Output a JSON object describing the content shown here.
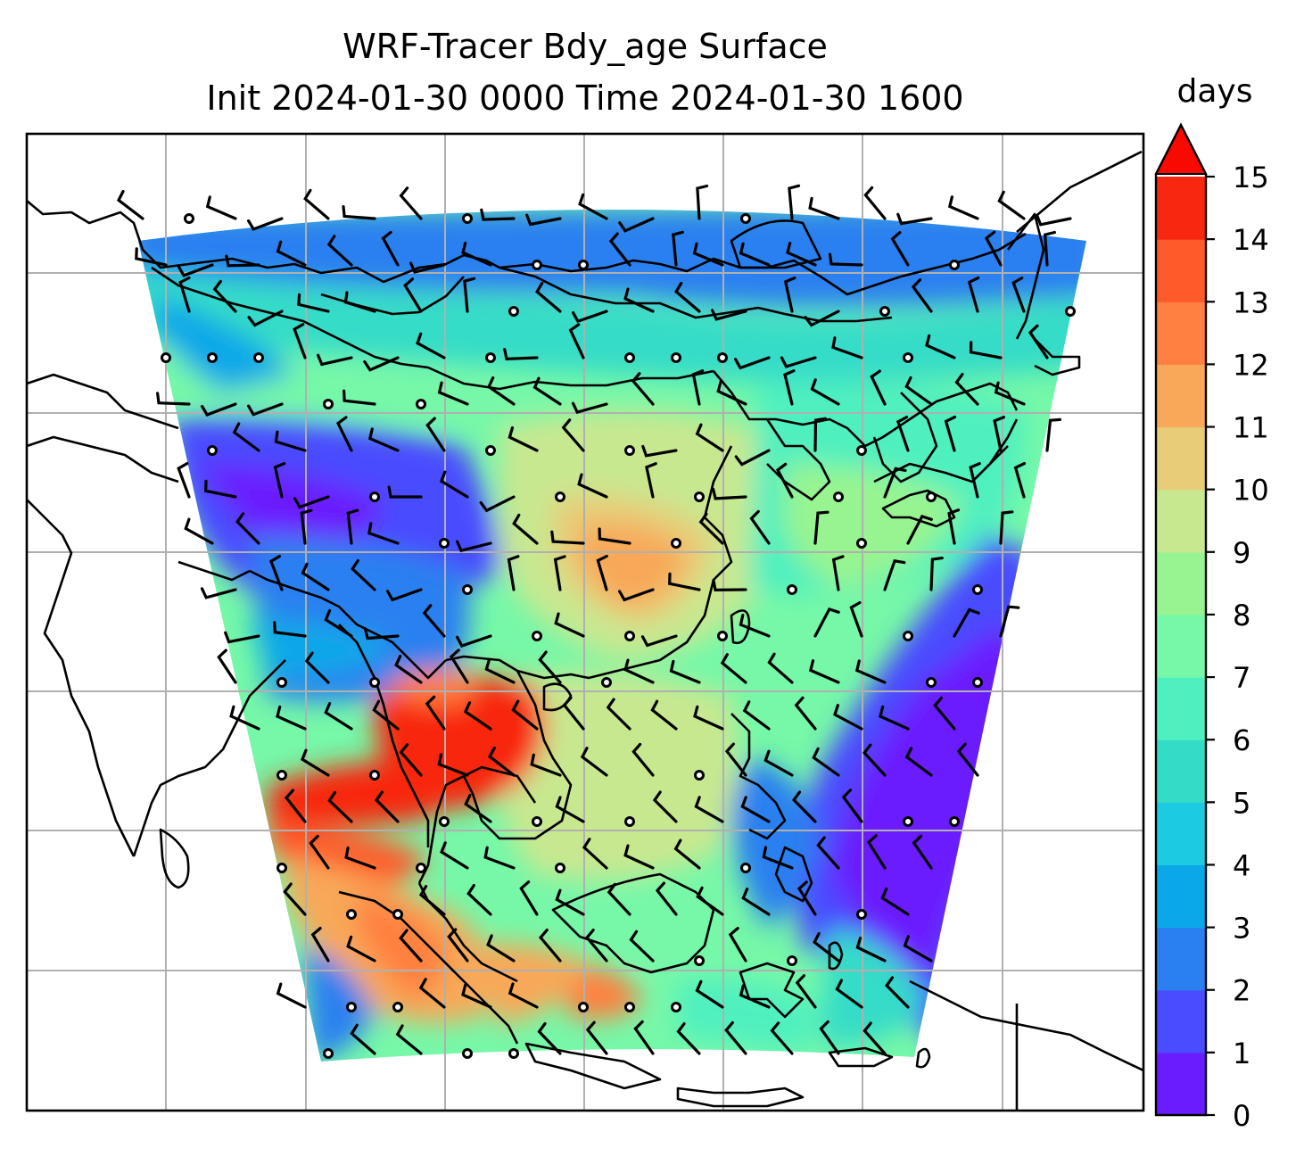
{
  "title": {
    "line1": "WRF-Tracer Bdy_age Surface",
    "line2": "Init 2024-01-30 0000 Time 2024-01-30 1600"
  },
  "colorbar": {
    "label": "days",
    "ticks": [
      "0",
      "1",
      "2",
      "3",
      "4",
      "5",
      "6",
      "7",
      "8",
      "9",
      "10",
      "11",
      "12",
      "13",
      "14",
      "15"
    ],
    "extend": "max",
    "colors": [
      "#6a1cff",
      "#4a4cff",
      "#2a80f0",
      "#0aa8e8",
      "#1ccbe0",
      "#34dcc8",
      "#4ff0c0",
      "#76f8a8",
      "#98f490",
      "#c8e890",
      "#e8cc78",
      "#f8a858",
      "#ff8040",
      "#ff5a2a",
      "#f82810"
    ],
    "extend_color": "#f80a00"
  },
  "map": {
    "field": "Bdy_age",
    "level": "Surface",
    "units": "days",
    "gridlines": true,
    "colors": {
      "young_air": "#6a1cff",
      "medium_air": "#34dcc8",
      "old_air": "#f82810",
      "coastline": "#000000",
      "gridline": "#b0b0b0"
    }
  }
}
